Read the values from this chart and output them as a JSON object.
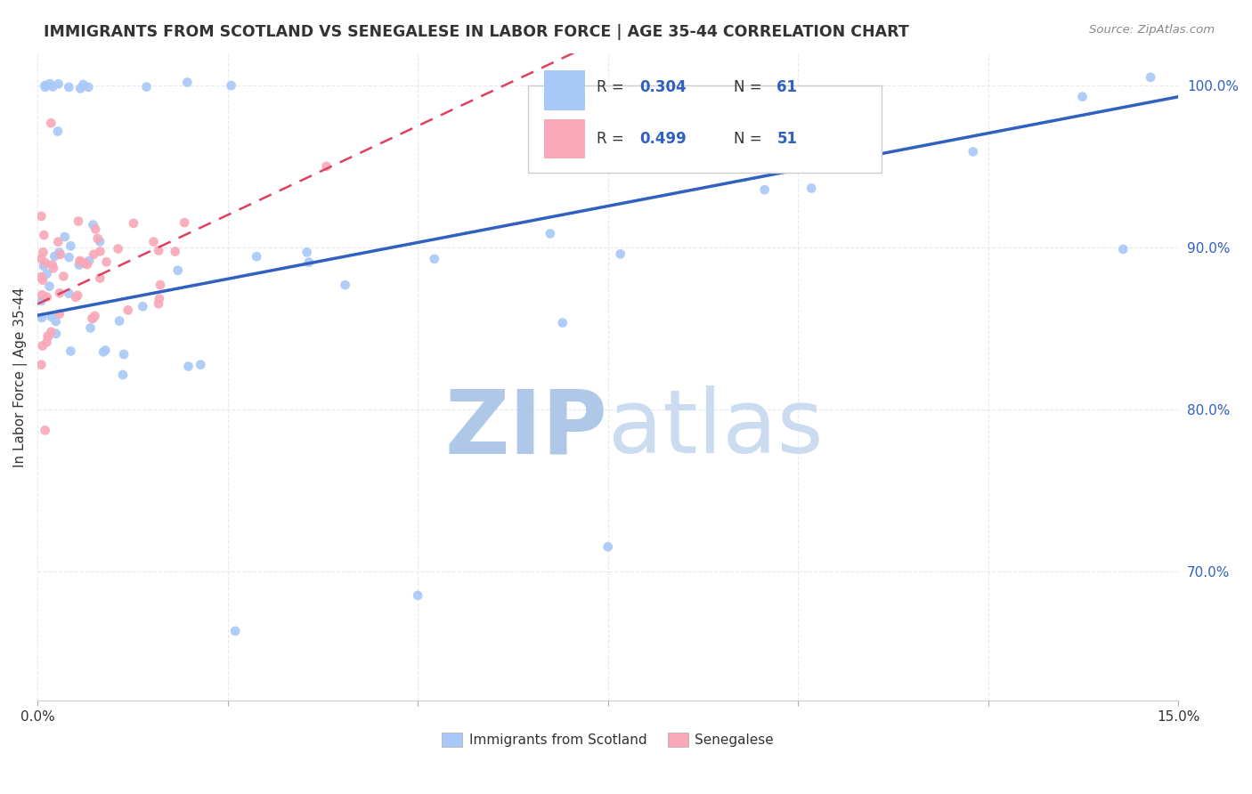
{
  "title": "IMMIGRANTS FROM SCOTLAND VS SENEGALESE IN LABOR FORCE | AGE 35-44 CORRELATION CHART",
  "source": "Source: ZipAtlas.com",
  "ylabel": "In Labor Force | Age 35-44",
  "y_tick_vals": [
    0.7,
    0.8,
    0.9,
    1.0
  ],
  "xlim": [
    0.0,
    0.15
  ],
  "ylim": [
    0.62,
    1.02
  ],
  "legend_r1": "0.304",
  "legend_n1": "61",
  "legend_r2": "0.499",
  "legend_n2": "51",
  "scotland_color": "#a8c8f8",
  "senegal_color": "#f8a8b8",
  "trend_scotland_color": "#3060c0",
  "trend_senegal_color": "#e04060",
  "watermark_zip_color": "#b8cce8",
  "watermark_atlas_color": "#ccdcee",
  "title_color": "#333333",
  "source_color": "#888888",
  "ytick_color": "#3060c0",
  "grid_color": "#e0e8f0"
}
